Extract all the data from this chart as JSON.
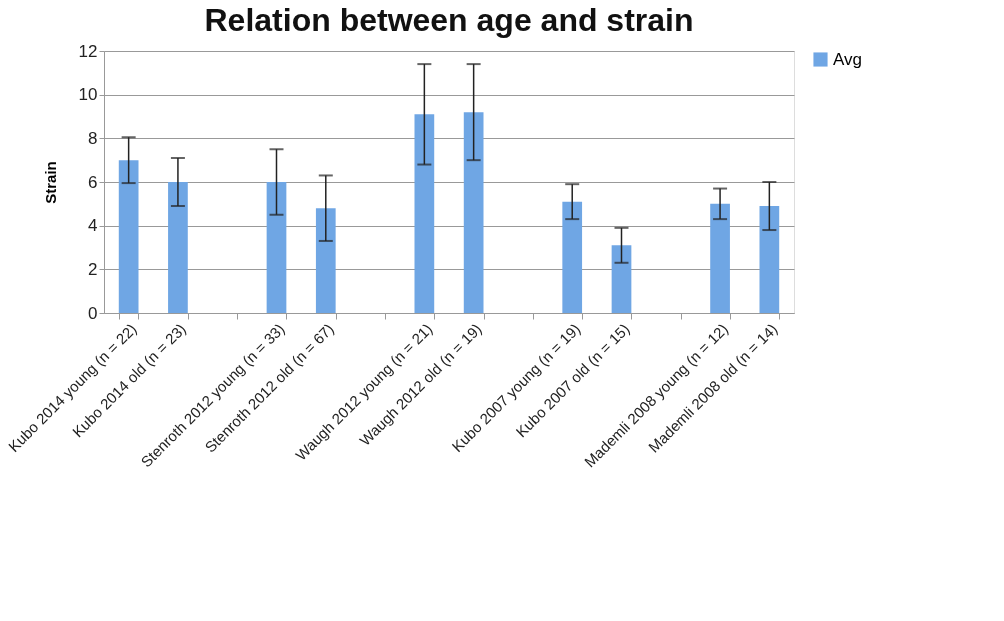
{
  "chart_data": {
    "type": "bar",
    "title": "Relation between age and strain",
    "ylabel": "Strain",
    "categories": [
      "Kubo 2014 young (n = 22)",
      "Kubo 2014 old (n = 23)",
      null,
      "Stenroth 2012 young (n = 33)",
      "Stenroth 2012 old (n = 67)",
      null,
      "Waugh 2012 young (n = 21)",
      "Waugh 2012 old (n = 19)",
      null,
      "Kubo 2007 young (n = 19)",
      "Kubo 2007 old (n = 15)",
      null,
      "Mademli 2008 young (n = 12)",
      "Mademli 2008 old (n = 14)"
    ],
    "series": [
      {
        "name": "Avg",
        "color": "#6fa6e4",
        "values": [
          7.0,
          6.0,
          null,
          6.0,
          4.8,
          null,
          9.1,
          9.2,
          null,
          5.1,
          3.1,
          null,
          5.0,
          4.9
        ],
        "errors": [
          1.05,
          1.1,
          null,
          1.5,
          1.5,
          null,
          2.3,
          2.2,
          null,
          0.8,
          0.8,
          null,
          0.7,
          1.1
        ]
      }
    ],
    "ylim": [
      0,
      12
    ],
    "yticks": [
      0,
      2,
      4,
      6,
      8,
      10,
      12
    ],
    "grid": "y",
    "legend": "right"
  }
}
